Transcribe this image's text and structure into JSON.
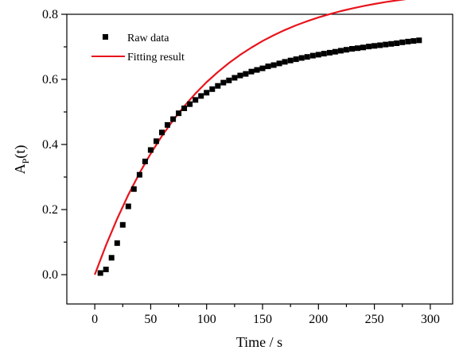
{
  "chart_data": {
    "type": "scatter",
    "xlabel": "Time / s",
    "ylabel": {
      "main": "A",
      "sub": "P",
      "suffix": "(t)"
    },
    "xlim": [
      -25,
      320
    ],
    "ylim": [
      -0.09,
      0.8
    ],
    "x_ticks": [
      0,
      50,
      100,
      150,
      200,
      250,
      300
    ],
    "x_tick_labels": [
      "0",
      "50",
      "100",
      "150",
      "200",
      "250",
      "300"
    ],
    "y_ticks": [
      0.0,
      0.2,
      0.4,
      0.6,
      0.8
    ],
    "y_tick_labels": [
      "0.0",
      "0.2",
      "0.4",
      "0.6",
      "0.8"
    ],
    "grid": false,
    "legend": {
      "position": "top-left"
    },
    "series": [
      {
        "name": "Raw data",
        "kind": "scatter",
        "marker": "square",
        "color": "#000000",
        "x": [
          5,
          10,
          15,
          20,
          25,
          30,
          35,
          40,
          45,
          50,
          55,
          60,
          65,
          70,
          75,
          80,
          85,
          90,
          95,
          100,
          105,
          110,
          115,
          120,
          125,
          130,
          135,
          140,
          145,
          150,
          155,
          160,
          165,
          170,
          175,
          180,
          185,
          190,
          195,
          200,
          205,
          210,
          215,
          220,
          225,
          230,
          235,
          240,
          245,
          250,
          255,
          260,
          265,
          270,
          275,
          280,
          285,
          290
        ],
        "y": [
          0.005,
          0.016,
          0.052,
          0.097,
          0.153,
          0.21,
          0.263,
          0.307,
          0.348,
          0.383,
          0.41,
          0.437,
          0.46,
          0.478,
          0.496,
          0.511,
          0.524,
          0.537,
          0.549,
          0.559,
          0.57,
          0.58,
          0.59,
          0.597,
          0.605,
          0.612,
          0.617,
          0.624,
          0.629,
          0.634,
          0.64,
          0.644,
          0.649,
          0.654,
          0.658,
          0.662,
          0.666,
          0.669,
          0.673,
          0.676,
          0.679,
          0.682,
          0.685,
          0.688,
          0.691,
          0.694,
          0.696,
          0.698,
          0.701,
          0.703,
          0.705,
          0.707,
          0.709,
          0.711,
          0.714,
          0.716,
          0.718,
          0.72
        ]
      },
      {
        "name": "Fitting result",
        "kind": "line",
        "color": "#e8141c",
        "x": [
          0,
          10,
          20,
          30,
          40,
          50,
          60,
          70,
          80,
          90,
          100,
          110,
          120,
          130,
          140,
          150,
          160,
          170,
          180,
          190,
          200,
          210,
          220,
          230,
          240,
          250,
          260,
          270,
          280,
          290
        ],
        "y": [
          0.0,
          0.0902,
          0.1718,
          0.2456,
          0.3121,
          0.3719,
          0.4259,
          0.4743,
          0.5177,
          0.5567,
          0.5914,
          0.6226,
          0.6504,
          0.6754,
          0.6977,
          0.7178,
          0.7357,
          0.7518,
          0.7661,
          0.7789,
          0.7904,
          0.8006,
          0.8097,
          0.8178,
          0.8251,
          0.8317,
          0.8375,
          0.8427,
          0.8473,
          0.8514
        ]
      }
    ]
  }
}
